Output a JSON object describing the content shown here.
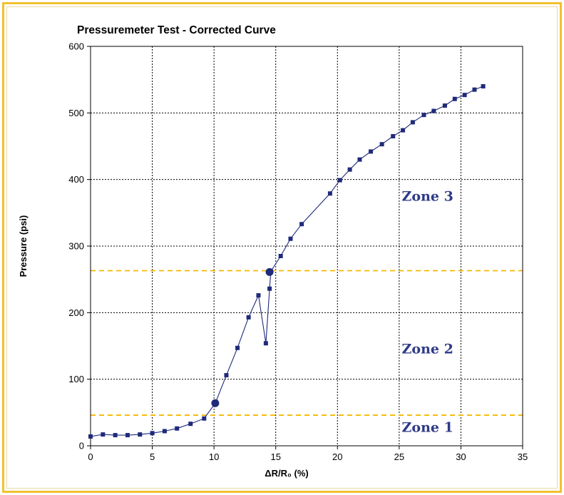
{
  "chart_data": {
    "type": "scatter",
    "title": "Pressuremeter Test - Corrected Curve",
    "xlabel": "ΔR/R₀ (%)",
    "ylabel": "Pressure (psi)",
    "xlim": [
      0,
      35
    ],
    "ylim": [
      0,
      600
    ],
    "xticks": [
      0,
      5,
      10,
      15,
      20,
      25,
      30,
      35
    ],
    "yticks": [
      0,
      100,
      200,
      300,
      400,
      500,
      600
    ],
    "grid": true,
    "colors": {
      "series": "#1f2a7a",
      "reference": "#f5b800",
      "zone_text": "#2e3a86"
    },
    "series": [
      {
        "x": [
          0,
          1,
          2,
          3,
          4,
          5,
          6,
          7,
          8.1,
          9.2,
          10.1,
          11.0,
          11.9,
          12.8,
          13.6,
          14.2,
          14.5,
          14.6,
          15.4,
          16.2,
          17.1,
          19.4,
          20.2,
          21.0,
          21.8,
          22.7,
          23.6,
          24.5,
          25.3,
          26.1,
          27.0,
          27.8,
          28.7,
          29.5,
          30.3,
          31.1,
          31.8
        ],
        "y": [
          14,
          17,
          16,
          16,
          17,
          19,
          22,
          26,
          33,
          41,
          64,
          106,
          147,
          193,
          226,
          154,
          236,
          262,
          285,
          311,
          333,
          379,
          399,
          415,
          430,
          442,
          453,
          465,
          474,
          486,
          497,
          503,
          511,
          521,
          527,
          535,
          540
        ]
      }
    ],
    "highlight_points": [
      {
        "x": 10.1,
        "y": 64
      },
      {
        "x": 14.5,
        "y": 261
      }
    ],
    "reference_lines": [
      {
        "orientation": "horizontal",
        "y": 46
      },
      {
        "orientation": "horizontal",
        "y": 263
      }
    ],
    "annotations": [
      {
        "text": "Zone 3",
        "x": 27.3,
        "y": 368
      },
      {
        "text": "Zone 2",
        "x": 27.3,
        "y": 139
      },
      {
        "text": "Zone 1",
        "x": 27.3,
        "y": 21
      }
    ]
  }
}
